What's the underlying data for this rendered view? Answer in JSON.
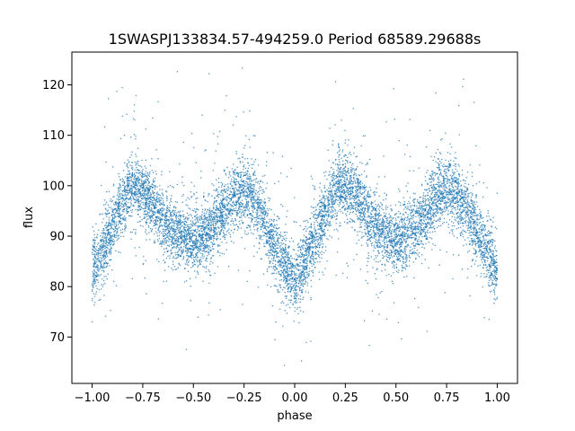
{
  "chart_data": {
    "type": "scatter",
    "title": "1SWASPJ133834.57-494259.0 Period 68589.29688s",
    "xlabel": "phase",
    "ylabel": "flux",
    "xlim": [
      -1.1,
      1.1
    ],
    "ylim": [
      60.8,
      126.5
    ],
    "xticks": [
      -1.0,
      -0.75,
      -0.5,
      -0.25,
      0.0,
      0.25,
      0.5,
      0.75,
      1.0
    ],
    "xtick_labels": [
      "−1.00",
      "−0.75",
      "−0.50",
      "−0.25",
      "0.00",
      "0.25",
      "0.50",
      "0.75",
      "1.00"
    ],
    "yticks": [
      70,
      80,
      90,
      100,
      110,
      120
    ],
    "ytick_labels": [
      "70",
      "80",
      "90",
      "100",
      "110",
      "120"
    ],
    "grid": false,
    "marker_color": "#1f77b4",
    "series": [
      {
        "x": [
          -1.0,
          -0.95,
          -0.9,
          -0.85,
          -0.8,
          -0.75,
          -0.7,
          -0.65,
          -0.6,
          -0.55,
          -0.5,
          -0.45,
          -0.4,
          -0.35,
          -0.3,
          -0.25,
          -0.2,
          -0.15,
          -0.1,
          -0.05,
          0.0,
          0.05,
          0.1,
          0.15,
          0.2,
          0.25,
          0.3,
          0.35,
          0.4,
          0.45,
          0.5,
          0.55,
          0.6,
          0.65,
          0.7,
          0.75,
          0.8,
          0.85,
          0.9,
          0.95,
          1.0
        ],
        "y": [
          83,
          87,
          92,
          97,
          99.5,
          99,
          96,
          93,
          91,
          90,
          89,
          90,
          92,
          95,
          98,
          99.5,
          97,
          93,
          88,
          84,
          81,
          85,
          90,
          95,
          99,
          100,
          98,
          95,
          92,
          90,
          89,
          90,
          92,
          95,
          98,
          99.5,
          98,
          95,
          91,
          87,
          83
        ]
      }
    ]
  }
}
